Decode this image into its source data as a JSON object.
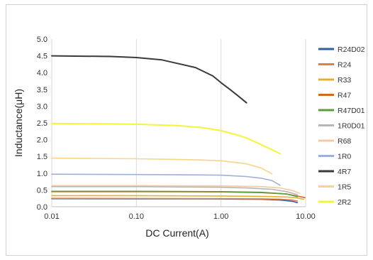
{
  "chart_data": {
    "type": "line",
    "title": "",
    "xlabel": "DC  Current(A)",
    "ylabel": "Inductance(μH)",
    "x_scale": "log",
    "xlim": [
      0.01,
      10
    ],
    "ylim": [
      0,
      5
    ],
    "x_ticks": [
      "0.01",
      "0.10",
      "1.00",
      "10.00"
    ],
    "y_ticks": [
      "0.0",
      "0.5",
      "1.0",
      "1.5",
      "2.0",
      "2.5",
      "3.0",
      "3.5",
      "4.0",
      "4.5",
      "5.0"
    ],
    "grid": "vertical",
    "legend_position": "right",
    "series": [
      {
        "name": "R24D02",
        "color": "#2e5fa3",
        "x": [
          0.01,
          0.1,
          1,
          3,
          5,
          7,
          8
        ],
        "y": [
          0.24,
          0.235,
          0.23,
          0.22,
          0.2,
          0.16,
          0.12
        ]
      },
      {
        "name": "R24",
        "color": "#e67e3b",
        "x": [
          0.01,
          0.1,
          1,
          3,
          5,
          7,
          8
        ],
        "y": [
          0.25,
          0.245,
          0.24,
          0.235,
          0.225,
          0.2,
          0.17
        ]
      },
      {
        "name": "R33",
        "color": "#e8b030",
        "x": [
          0.01,
          0.1,
          1,
          3,
          6,
          8,
          9.5
        ],
        "y": [
          0.33,
          0.33,
          0.32,
          0.31,
          0.29,
          0.26,
          0.22
        ]
      },
      {
        "name": "R47",
        "color": "#d2691e",
        "x": [
          0.01,
          0.1,
          1,
          3,
          6,
          8,
          9.8
        ],
        "y": [
          0.45,
          0.45,
          0.44,
          0.42,
          0.38,
          0.32,
          0.27
        ]
      },
      {
        "name": "R47D01",
        "color": "#5a9e3a",
        "x": [
          0.01,
          0.1,
          1,
          3,
          6,
          8
        ],
        "y": [
          0.46,
          0.46,
          0.45,
          0.43,
          0.38,
          0.3
        ]
      },
      {
        "name": "1R0D01",
        "color": "#b5b5b5",
        "x": [
          0.01,
          0.1,
          1,
          2,
          4,
          6,
          8
        ],
        "y": [
          0.6,
          0.6,
          0.58,
          0.56,
          0.52,
          0.45,
          0.36
        ]
      },
      {
        "name": "R68",
        "color": "#f4c9a4",
        "x": [
          0.01,
          0.1,
          1,
          3,
          5,
          7,
          8.5
        ],
        "y": [
          0.63,
          0.63,
          0.62,
          0.6,
          0.56,
          0.48,
          0.4
        ]
      },
      {
        "name": "1R0",
        "color": "#9db0dc",
        "x": [
          0.01,
          0.1,
          0.5,
          1,
          2,
          3,
          4,
          5
        ],
        "y": [
          0.97,
          0.96,
          0.95,
          0.94,
          0.9,
          0.85,
          0.78,
          0.64
        ]
      },
      {
        "name": "4R7",
        "color": "#3a3a3a",
        "x": [
          0.01,
          0.05,
          0.1,
          0.2,
          0.5,
          0.8,
          1,
          1.3,
          1.6,
          2
        ],
        "y": [
          4.5,
          4.48,
          4.45,
          4.38,
          4.15,
          3.9,
          3.7,
          3.48,
          3.3,
          3.1
        ]
      },
      {
        "name": "1R5",
        "color": "#f7d488",
        "x": [
          0.01,
          0.1,
          0.5,
          1,
          2,
          3,
          4
        ],
        "y": [
          1.45,
          1.43,
          1.4,
          1.37,
          1.28,
          1.15,
          0.98
        ]
      },
      {
        "name": "2R2",
        "color": "#f5f538",
        "x": [
          0.01,
          0.05,
          0.1,
          0.3,
          0.6,
          1,
          1.5,
          2,
          3,
          5
        ],
        "y": [
          2.48,
          2.47,
          2.46,
          2.42,
          2.36,
          2.27,
          2.15,
          2.05,
          1.85,
          1.58
        ]
      }
    ]
  }
}
